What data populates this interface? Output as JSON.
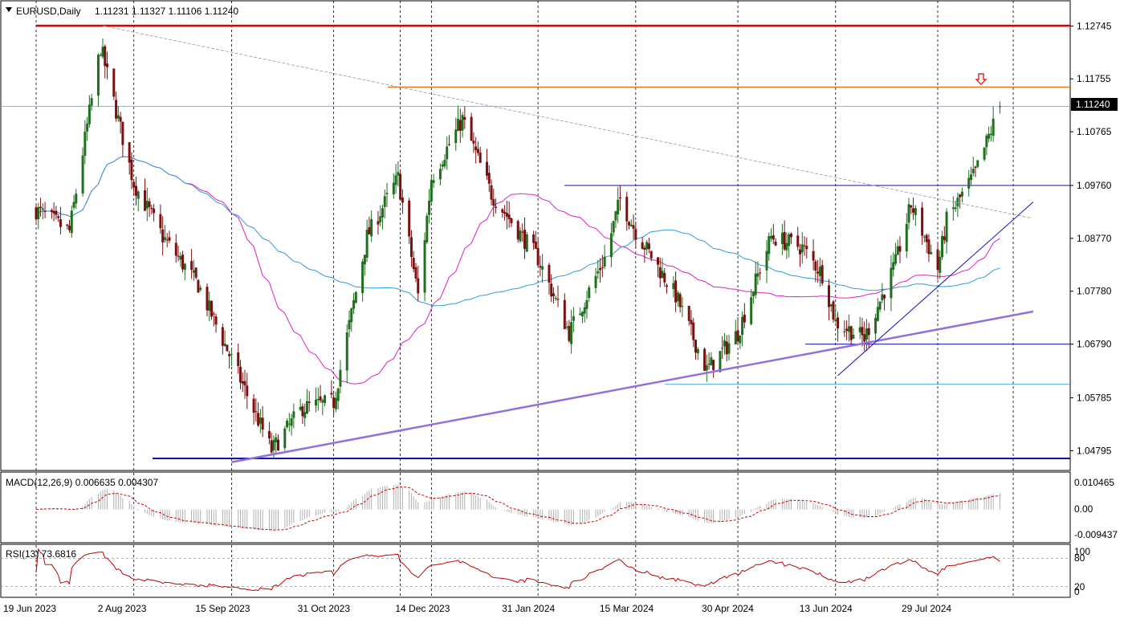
{
  "header": {
    "symbol_label": "EURUSD,Daily",
    "ohlc_label": "1.11231 1.11327 1.11106 1.11240",
    "arrow_icon": "triangle-down-icon"
  },
  "price_axis": {
    "labels": [
      "1.12745",
      "1.11755",
      "1.10765",
      "1.09760",
      "1.08770",
      "1.07780",
      "1.06790",
      "1.05785",
      "1.04795"
    ],
    "current_price_label": "1.11240"
  },
  "macd": {
    "label": "MACD(12,26,9) 0.006635 0.004307",
    "axis_labels": [
      "0.010465",
      "0.00",
      "-0.009437"
    ]
  },
  "rsi": {
    "label": "RSI(13) 73.6816",
    "axis_labels": [
      "100",
      "80",
      "20",
      "0"
    ]
  },
  "time_axis": {
    "labels": [
      "19 Jun 2023",
      "2 Aug 2023",
      "15 Sep 2023",
      "31 Oct 2023",
      "14 Dec 2023",
      "31 Jan 2024",
      "15 Mar 2024",
      "30 Apr 2024",
      "13 Jun 2024",
      "29 Jul 2024"
    ]
  },
  "colors": {
    "bull": "#1f6f1f",
    "bear": "#7a1010",
    "ma_fast": "#e020c0",
    "ma_slow": "#2d9de0",
    "resistance_red": "#e00000",
    "resistance_orange": "#e07a20",
    "support_blue": "#1010b0",
    "trend_purple": "#9070e0",
    "rsi_line": "#c00000",
    "macd_signal": "#d00000",
    "macd_hist": "#b0b0b0"
  },
  "chart_data": [
    {
      "type": "candlestick",
      "symbol": "EURUSD",
      "timeframe": "Daily",
      "ylim": [
        1.0425,
        1.1305
      ],
      "last": {
        "open": 1.11231,
        "high": 1.11327,
        "low": 1.11106,
        "close": 1.1124
      },
      "close_waypoints": [
        [
          "19 Jun 2023",
          1.093
        ],
        [
          "4 Jul 2023",
          1.089
        ],
        [
          "18 Jul 2023",
          1.1235
        ],
        [
          "2 Aug 2023",
          1.098
        ],
        [
          "15 Aug 2023",
          1.088
        ],
        [
          "31 Aug 2023",
          1.079
        ],
        [
          "15 Sep 2023",
          1.065
        ],
        [
          "3 Oct 2023",
          1.048
        ],
        [
          "17 Oct 2023",
          1.056
        ],
        [
          "31 Oct 2023",
          1.057
        ],
        [
          "15 Nov 2023",
          1.088
        ],
        [
          "29 Nov 2023",
          1.099
        ],
        [
          "8 Dec 2023",
          1.077
        ],
        [
          "14 Dec 2023",
          1.099
        ],
        [
          "28 Dec 2023",
          1.11
        ],
        [
          "10 Jan 2024",
          1.096
        ],
        [
          "31 Jan 2024",
          1.084
        ],
        [
          "14 Feb 2024",
          1.07
        ],
        [
          "1 Mar 2024",
          1.084
        ],
        [
          "8 Mar 2024",
          1.095
        ],
        [
          "15 Mar 2024",
          1.089
        ],
        [
          "2 Apr 2024",
          1.077
        ],
        [
          "16 Apr 2024",
          1.063
        ],
        [
          "30 Apr 2024",
          1.07
        ],
        [
          "15 May 2024",
          1.088
        ],
        [
          "29 May 2024",
          1.086
        ],
        [
          "7 Jun 2024",
          1.081
        ],
        [
          "13 Jun 2024",
          1.072
        ],
        [
          "26 Jun 2024",
          1.069
        ],
        [
          "10 Jul 2024",
          1.083
        ],
        [
          "17 Jul 2024",
          1.094
        ],
        [
          "29 Jul 2024",
          1.082
        ],
        [
          "2 Aug 2024",
          1.091
        ],
        [
          "15 Aug 2024",
          1.1
        ],
        [
          "26 Aug 2024",
          1.1124
        ]
      ],
      "horizontal_levels": [
        1.1275,
        1.116,
        1.0976,
        1.0679,
        1.0604,
        1.0465
      ],
      "trendlines": [
        {
          "from": [
            "19 Jul 2023",
            1.1275
          ],
          "to": [
            "9 Sep 2024",
            1.0915
          ]
        },
        {
          "from": [
            "15 Sep 2023",
            1.0458
          ],
          "to": [
            "10 Sep 2024",
            1.074
          ]
        },
        {
          "from": [
            "14 Jun 2024",
            1.062
          ],
          "to": [
            "10 Sep 2024",
            1.0945
          ]
        }
      ]
    },
    {
      "type": "macd",
      "params": [
        12,
        26,
        9
      ],
      "macd_value": 0.006635,
      "signal_value": 0.004307,
      "ylim": [
        -0.0115,
        0.0125
      ]
    },
    {
      "type": "rsi",
      "period": 13,
      "value": 73.6816,
      "ylim": [
        0,
        100
      ],
      "levels": [
        80,
        20
      ]
    }
  ]
}
